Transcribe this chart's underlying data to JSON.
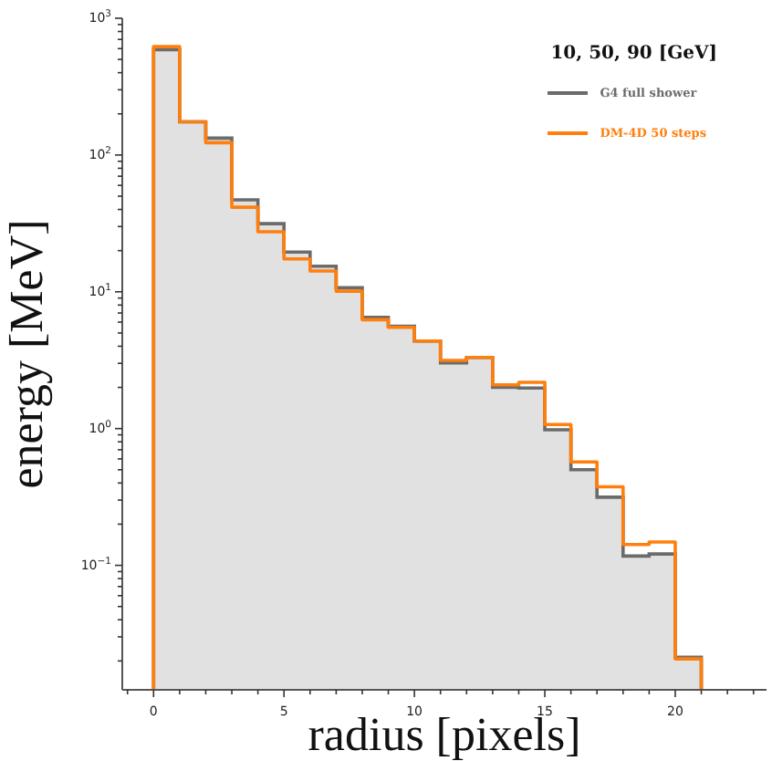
{
  "chart_data": {
    "type": "histogram",
    "xlabel": "radius [pixels]",
    "ylabel": "energy [MeV]",
    "legend_title": "10, 50, 90 [GeV]",
    "legend": "top right",
    "log": "y",
    "bins": [
      0,
      1,
      2,
      3,
      4,
      5,
      6,
      7,
      8,
      9,
      10,
      11,
      12,
      13,
      14,
      15,
      16,
      17,
      18,
      19,
      20,
      21
    ],
    "series": [
      {
        "name": "G4 full shower",
        "color": "#6b6b6b",
        "values": [
          589,
          175,
          133,
          47,
          31.5,
          19.5,
          15.4,
          10.7,
          6.5,
          5.6,
          4.37,
          3.02,
          3.31,
          2.0,
          1.98,
          0.98,
          0.5,
          0.315,
          0.117,
          0.121,
          0.0213
        ]
      },
      {
        "name": "DM-4D 50 steps",
        "color": "#ff7f0e",
        "values": [
          620,
          175,
          123,
          41.5,
          27.5,
          17.4,
          14.2,
          10.1,
          6.25,
          5.5,
          4.37,
          3.15,
          3.31,
          2.09,
          2.18,
          1.07,
          0.57,
          0.375,
          0.142,
          0.148,
          0.0207
        ]
      }
    ],
    "xlim": [
      -1.2,
      23.5
    ],
    "xticks": [
      {
        "value": -1,
        "label": null
      },
      0,
      {
        "value": 1,
        "label": null
      },
      {
        "value": 2,
        "label": null
      },
      {
        "value": 3,
        "label": null
      },
      {
        "value": 4,
        "label": null
      },
      5,
      {
        "value": 6,
        "label": null
      },
      {
        "value": 7,
        "label": null
      },
      {
        "value": 8,
        "label": null
      },
      {
        "value": 9,
        "label": null
      },
      10,
      {
        "value": 11,
        "label": null
      },
      {
        "value": 12,
        "label": null
      },
      {
        "value": 13,
        "label": null
      },
      {
        "value": 14,
        "label": null
      },
      15,
      {
        "value": 16,
        "label": null
      },
      {
        "value": 17,
        "label": null
      },
      {
        "value": 18,
        "label": null
      },
      {
        "value": 19,
        "label": null
      },
      20,
      {
        "value": 21,
        "label": null
      },
      {
        "value": 22,
        "label": null
      },
      {
        "value": 23,
        "label": null
      }
    ],
    "ylim": [
      0.0123,
      1000
    ],
    "yticks": [
      {
        "value": 0.02,
        "label": null
      },
      {
        "value": 0.03,
        "label": null
      },
      {
        "value": 0.04,
        "label": null
      },
      {
        "value": 0.05,
        "label": null
      },
      {
        "value": 0.06,
        "label": null
      },
      {
        "value": 0.07,
        "label": null
      },
      {
        "value": 0.08,
        "label": null
      },
      {
        "value": 0.09,
        "label": null
      },
      {
        "value": 0.1,
        "label": "10$^{−1}$"
      },
      {
        "value": 0.2,
        "label": null
      },
      {
        "value": 0.3,
        "label": null
      },
      {
        "value": 0.4,
        "label": null
      },
      {
        "value": 0.5,
        "label": null
      },
      {
        "value": 0.6,
        "label": null
      },
      {
        "value": 0.7,
        "label": null
      },
      {
        "value": 0.8,
        "label": null
      },
      {
        "value": 0.9,
        "label": null
      },
      {
        "value": 1,
        "label": "10$^{0}$"
      },
      {
        "value": 2,
        "label": null
      },
      {
        "value": 3,
        "label": null
      },
      {
        "value": 4,
        "label": null
      },
      {
        "value": 5,
        "label": null
      },
      {
        "value": 6,
        "label": null
      },
      {
        "value": 7,
        "label": null
      },
      {
        "value": 8,
        "label": null
      },
      {
        "value": 9,
        "label": null
      },
      {
        "value": 10,
        "label": "10$^{1}$"
      },
      {
        "value": 20,
        "label": null
      },
      {
        "value": 30,
        "label": null
      },
      {
        "value": 40,
        "label": null
      },
      {
        "value": 50,
        "label": null
      },
      {
        "value": 60,
        "label": null
      },
      {
        "value": 70,
        "label": null
      },
      {
        "value": 80,
        "label": null
      },
      {
        "value": 90,
        "label": null
      },
      {
        "value": 100,
        "label": "10$^{2}$"
      },
      {
        "value": 200,
        "label": null
      },
      {
        "value": 300,
        "label": null
      },
      {
        "value": 400,
        "label": null
      },
      {
        "value": 500,
        "label": null
      },
      {
        "value": 600,
        "label": null
      },
      {
        "value": 700,
        "label": null
      },
      {
        "value": 800,
        "label": null
      },
      {
        "value": 900,
        "label": null
      },
      {
        "value": 1000,
        "label": "10$^{3}$"
      }
    ]
  }
}
